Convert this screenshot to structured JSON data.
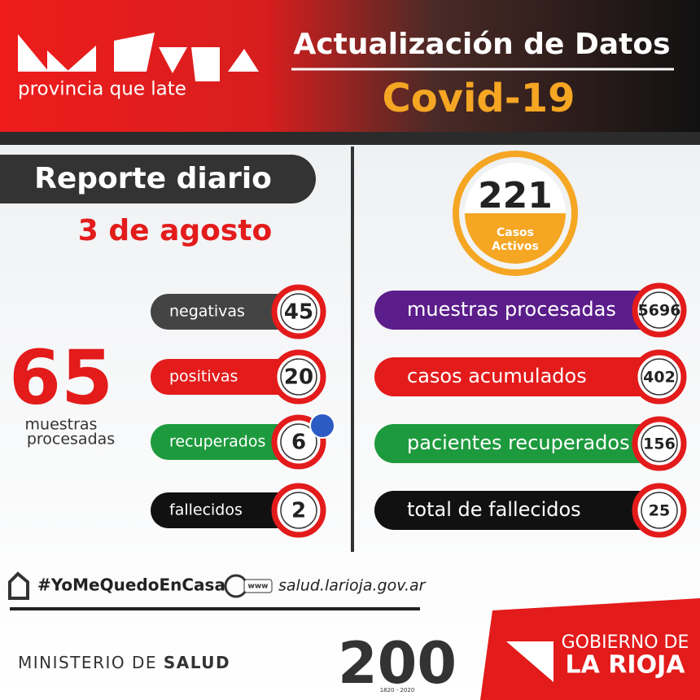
{
  "header": {
    "logo_tagline": "provincia que late",
    "title": "Actualización de Datos",
    "subtitle": "Covid-19"
  },
  "report": {
    "title": "Reporte diario",
    "date": "3 de agosto"
  },
  "daily": {
    "total": 65,
    "total_label_1": "muestras",
    "total_label_2": "procesadas",
    "rows": [
      {
        "label": "negativas",
        "value": 45,
        "color": "#444444"
      },
      {
        "label": "positivas",
        "value": 20,
        "color": "#e31b1b"
      },
      {
        "label": "recuperados",
        "value": 6,
        "color": "#1e9a3e"
      },
      {
        "label": "fallecidos",
        "value": 2,
        "color": "#111111"
      }
    ]
  },
  "active": {
    "value": 221,
    "label_1": "Casos",
    "label_2": "Activos"
  },
  "cumulative": {
    "rows": [
      {
        "label": "muestras procesadas",
        "value": 5696,
        "color": "#5b1d8a"
      },
      {
        "label": "casos acumulados",
        "value": 402,
        "color": "#e31b1b"
      },
      {
        "label": "pacientes recuperados",
        "value": 156,
        "color": "#1e9a3e"
      },
      {
        "label": "total de fallecidos",
        "value": 25,
        "color": "#111111"
      }
    ]
  },
  "footer": {
    "hashtag": "#YoMeQuedoEnCasa",
    "www": "www",
    "website": "salud.larioja.gov.ar",
    "ministry_1": "MINISTERIO DE",
    "ministry_2": "SALUD",
    "anniversary_number": "200",
    "anniversary_years": "1820 - 2020",
    "gov_1": "GOBIERNO DE",
    "gov_2": "LA RIOJA"
  }
}
